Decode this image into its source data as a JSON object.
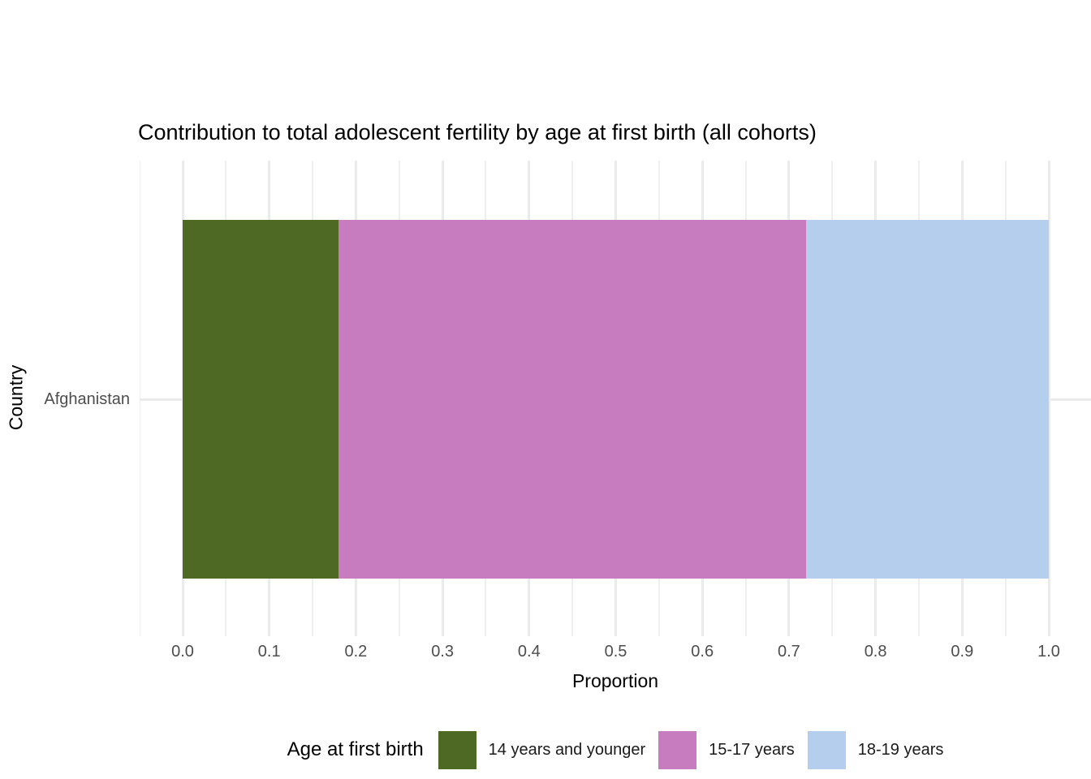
{
  "chart_data": {
    "type": "bar",
    "orientation": "horizontal",
    "stacked": true,
    "title": "Contribution to total adolescent fertility by age at first birth (all cohorts)",
    "xlabel": "Proportion",
    "ylabel": "Country",
    "categories": [
      "Afghanistan"
    ],
    "series": [
      {
        "name": "14 years and younger",
        "values": [
          0.18
        ],
        "color": "#4d6923"
      },
      {
        "name": "15-17 years",
        "values": [
          0.54
        ],
        "color": "#c87cc0"
      },
      {
        "name": "18-19 years",
        "values": [
          0.28
        ],
        "color": "#b6ceee"
      }
    ],
    "xlim": [
      -0.05,
      1.05
    ],
    "xticks": [
      {
        "v": 0.0,
        "label": "0.0"
      },
      {
        "v": 0.1,
        "label": "0.1"
      },
      {
        "v": 0.2,
        "label": "0.2"
      },
      {
        "v": 0.3,
        "label": "0.3"
      },
      {
        "v": 0.4,
        "label": "0.4"
      },
      {
        "v": 0.5,
        "label": "0.5"
      },
      {
        "v": 0.6,
        "label": "0.6"
      },
      {
        "v": 0.7,
        "label": "0.7"
      },
      {
        "v": 0.8,
        "label": "0.8"
      },
      {
        "v": 0.9,
        "label": "0.9"
      },
      {
        "v": 1.0,
        "label": "1.0"
      }
    ],
    "minor_ticks": [
      -0.05,
      0.05,
      0.15,
      0.25,
      0.35,
      0.45,
      0.55,
      0.65,
      0.75,
      0.85,
      0.95,
      1.05
    ],
    "grid": true,
    "legend": {
      "title": "Age at first birth",
      "position": "bottom"
    }
  }
}
